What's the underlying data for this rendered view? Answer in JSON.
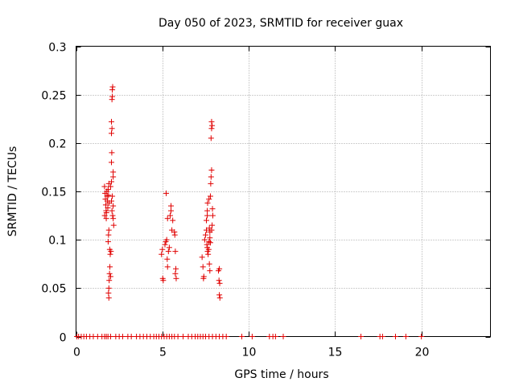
{
  "chart_data": {
    "type": "scatter",
    "title": "Day 050 of 2023, SRMTID for receiver guax",
    "xlabel": "GPS time / hours",
    "ylabel": "SRMTID / TECUs",
    "xlim": [
      0,
      24
    ],
    "ylim": [
      0,
      0.3
    ],
    "xticks": [
      0,
      5,
      10,
      15,
      20
    ],
    "xtick_labels": [
      "0",
      "5",
      "10",
      "15",
      "20"
    ],
    "yticks": [
      0,
      0.05,
      0.1,
      0.15,
      0.2,
      0.25,
      0.3
    ],
    "ytick_labels": [
      "0",
      "0.05",
      "0.1",
      "0.15",
      "0.2",
      "0.25",
      "0.3"
    ],
    "grid": true,
    "marker": "+",
    "color": "#e00000",
    "series": [
      {
        "name": "SRMTID",
        "points": [
          [
            0.05,
            0
          ],
          [
            0.15,
            0
          ],
          [
            0.3,
            0
          ],
          [
            0.45,
            0
          ],
          [
            0.6,
            0
          ],
          [
            0.8,
            0
          ],
          [
            1.0,
            0
          ],
          [
            1.25,
            0
          ],
          [
            1.5,
            0
          ],
          [
            1.65,
            0
          ],
          [
            1.75,
            0
          ],
          [
            1.85,
            0
          ],
          [
            2.0,
            0
          ],
          [
            2.3,
            0
          ],
          [
            2.5,
            0
          ],
          [
            2.7,
            0
          ],
          [
            3.0,
            0
          ],
          [
            3.2,
            0
          ],
          [
            3.5,
            0
          ],
          [
            3.7,
            0
          ],
          [
            3.9,
            0
          ],
          [
            4.1,
            0
          ],
          [
            4.3,
            0
          ],
          [
            4.5,
            0
          ],
          [
            4.65,
            0
          ],
          [
            4.8,
            0
          ],
          [
            4.95,
            0
          ],
          [
            5.1,
            0
          ],
          [
            5.25,
            0
          ],
          [
            5.4,
            0
          ],
          [
            5.55,
            0
          ],
          [
            5.7,
            0
          ],
          [
            5.9,
            0
          ],
          [
            6.2,
            0
          ],
          [
            6.5,
            0
          ],
          [
            6.7,
            0
          ],
          [
            6.9,
            0
          ],
          [
            7.05,
            0
          ],
          [
            7.2,
            0
          ],
          [
            7.35,
            0
          ],
          [
            7.5,
            0
          ],
          [
            7.7,
            0
          ],
          [
            7.9,
            0
          ],
          [
            8.1,
            0
          ],
          [
            8.3,
            0
          ],
          [
            8.5,
            0
          ],
          [
            8.7,
            0
          ],
          [
            9.6,
            0
          ],
          [
            10.2,
            0
          ],
          [
            11.2,
            0
          ],
          [
            11.4,
            0
          ],
          [
            11.55,
            0
          ],
          [
            12.0,
            0
          ],
          [
            16.5,
            0
          ],
          [
            17.6,
            0
          ],
          [
            17.75,
            0
          ],
          [
            18.5,
            0
          ],
          [
            19.1,
            0
          ],
          [
            20.0,
            0
          ],
          [
            1.65,
            0.155
          ],
          [
            1.68,
            0.148
          ],
          [
            1.7,
            0.142
          ],
          [
            1.72,
            0.136
          ],
          [
            1.74,
            0.13
          ],
          [
            1.66,
            0.125
          ],
          [
            1.78,
            0.15
          ],
          [
            1.8,
            0.145
          ],
          [
            1.82,
            0.14
          ],
          [
            1.84,
            0.133
          ],
          [
            1.76,
            0.128
          ],
          [
            1.86,
            0.152
          ],
          [
            1.88,
            0.146
          ],
          [
            1.9,
            0.158
          ],
          [
            1.92,
            0.138
          ],
          [
            1.75,
            0.122
          ],
          [
            1.9,
            0.11
          ],
          [
            1.88,
            0.105
          ],
          [
            1.86,
            0.098
          ],
          [
            1.95,
            0.09
          ],
          [
            1.98,
            0.085
          ],
          [
            1.96,
            0.072
          ],
          [
            1.94,
            0.065
          ],
          [
            1.92,
            0.058
          ],
          [
            1.9,
            0.05
          ],
          [
            1.88,
            0.045
          ],
          [
            1.9,
            0.04
          ],
          [
            2.0,
            0.062
          ],
          [
            2.02,
            0.088
          ],
          [
            2.05,
            0.16
          ],
          [
            2.05,
            0.18
          ],
          [
            2.07,
            0.19
          ],
          [
            2.05,
            0.21
          ],
          [
            2.08,
            0.215
          ],
          [
            2.05,
            0.222
          ],
          [
            2.08,
            0.245
          ],
          [
            2.1,
            0.248
          ],
          [
            2.1,
            0.255
          ],
          [
            2.12,
            0.258
          ],
          [
            2.05,
            0.14
          ],
          [
            2.08,
            0.13
          ],
          [
            2.12,
            0.125
          ],
          [
            2.15,
            0.135
          ],
          [
            2.15,
            0.122
          ],
          [
            2.18,
            0.115
          ],
          [
            2.15,
            0.165
          ],
          [
            2.15,
            0.17
          ],
          [
            2.1,
            0.145
          ],
          [
            2.0,
            0.155
          ],
          [
            4.95,
            0.085
          ],
          [
            5.0,
            0.09
          ],
          [
            5.02,
            0.06
          ],
          [
            5.05,
            0.058
          ],
          [
            5.15,
            0.095
          ],
          [
            5.2,
            0.098
          ],
          [
            5.22,
            0.148
          ],
          [
            5.25,
            0.1
          ],
          [
            5.3,
            0.072
          ],
          [
            5.28,
            0.08
          ],
          [
            5.35,
            0.088
          ],
          [
            5.4,
            0.092
          ],
          [
            5.3,
            0.122
          ],
          [
            5.45,
            0.125
          ],
          [
            5.5,
            0.13
          ],
          [
            5.5,
            0.135
          ],
          [
            5.55,
            0.11
          ],
          [
            5.6,
            0.12
          ],
          [
            5.7,
            0.108
          ],
          [
            5.72,
            0.105
          ],
          [
            5.75,
            0.088
          ],
          [
            5.78,
            0.07
          ],
          [
            5.75,
            0.065
          ],
          [
            5.8,
            0.06
          ],
          [
            7.3,
            0.082
          ],
          [
            7.35,
            0.072
          ],
          [
            7.38,
            0.06
          ],
          [
            7.4,
            0.062
          ],
          [
            7.45,
            0.1
          ],
          [
            7.5,
            0.105
          ],
          [
            7.55,
            0.11
          ],
          [
            7.55,
            0.12
          ],
          [
            7.6,
            0.125
          ],
          [
            7.6,
            0.13
          ],
          [
            7.62,
            0.138
          ],
          [
            7.58,
            0.095
          ],
          [
            7.6,
            0.092
          ],
          [
            7.62,
            0.088
          ],
          [
            7.65,
            0.085
          ],
          [
            7.68,
            0.09
          ],
          [
            7.7,
            0.098
          ],
          [
            7.7,
            0.142
          ],
          [
            7.72,
            0.112
          ],
          [
            7.75,
            0.108
          ],
          [
            7.75,
            0.102
          ],
          [
            7.78,
            0.097
          ],
          [
            7.72,
            0.075
          ],
          [
            7.75,
            0.068
          ],
          [
            7.78,
            0.145
          ],
          [
            7.8,
            0.158
          ],
          [
            7.82,
            0.165
          ],
          [
            7.85,
            0.172
          ],
          [
            7.82,
            0.205
          ],
          [
            7.85,
            0.215
          ],
          [
            7.88,
            0.218
          ],
          [
            7.85,
            0.222
          ],
          [
            7.9,
            0.132
          ],
          [
            7.92,
            0.125
          ],
          [
            7.88,
            0.115
          ],
          [
            7.85,
            0.11
          ],
          [
            8.25,
            0.068
          ],
          [
            8.3,
            0.07
          ],
          [
            8.28,
            0.058
          ],
          [
            8.32,
            0.055
          ],
          [
            8.3,
            0.043
          ],
          [
            8.33,
            0.04
          ]
        ]
      }
    ]
  }
}
